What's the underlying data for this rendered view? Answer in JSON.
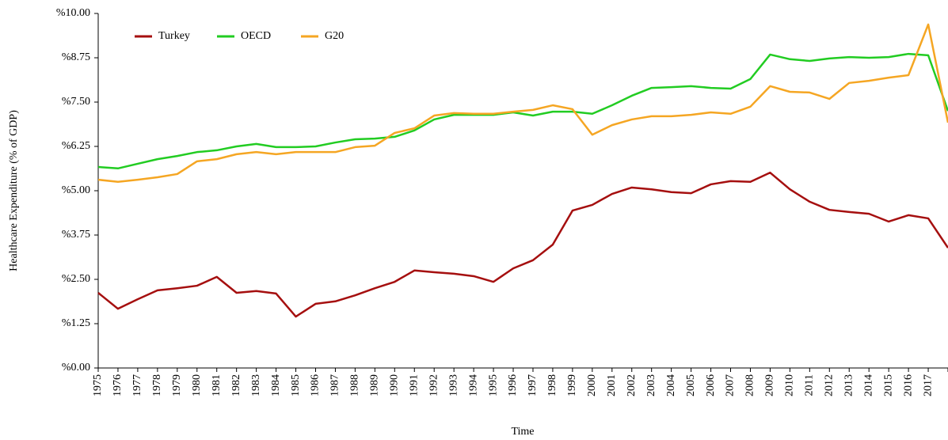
{
  "chart_data": {
    "type": "line",
    "x_label": "Time",
    "y_label": "Healthcare Expenditure  (% of GDP)",
    "categories": [
      "1975",
      "1976",
      "1977",
      "1978",
      "1979",
      "1980",
      "1981",
      "1982",
      "1983",
      "1984",
      "1985",
      "1986",
      "1987",
      "1988",
      "1989",
      "1990",
      "1991",
      "1992",
      "1993",
      "1994",
      "1995",
      "1996",
      "1997",
      "1998",
      "1999",
      "2000",
      "2001",
      "2002",
      "2003",
      "2004",
      "2005",
      "2006",
      "2007",
      "2008",
      "2009",
      "2010",
      "2011",
      "2012",
      "2013",
      "2014",
      "2015",
      "2016",
      "2017",
      null
    ],
    "series": [
      {
        "name": "Turkey",
        "color": "#a50f0f",
        "values": [
          2.12,
          1.67,
          1.94,
          2.19,
          2.25,
          2.32,
          2.57,
          2.12,
          2.17,
          2.1,
          1.45,
          1.81,
          1.88,
          2.05,
          2.25,
          2.43,
          2.75,
          2.7,
          2.66,
          2.59,
          2.43,
          2.81,
          3.04,
          3.48,
          4.44,
          4.6,
          4.91,
          5.09,
          5.04,
          4.96,
          4.93,
          5.18,
          5.27,
          5.25,
          5.51,
          5.04,
          4.69,
          4.46,
          4.4,
          4.35,
          4.13,
          4.31,
          4.22,
          3.39
        ]
      },
      {
        "name": "OECD",
        "color": "#22cc22",
        "values": [
          5.67,
          5.63,
          5.76,
          5.89,
          5.98,
          6.09,
          6.14,
          6.25,
          6.32,
          6.23,
          6.23,
          6.25,
          6.36,
          6.45,
          6.47,
          6.52,
          6.7,
          7.01,
          7.14,
          7.14,
          7.14,
          7.21,
          7.12,
          7.23,
          7.23,
          7.17,
          7.41,
          7.68,
          7.9,
          7.92,
          7.95,
          7.9,
          7.88,
          8.15,
          8.84,
          8.71,
          8.66,
          8.73,
          8.77,
          8.75,
          8.77,
          8.86,
          8.82,
          7.25
        ]
      },
      {
        "name": "G20",
        "color": "#f5a623",
        "values": [
          5.31,
          5.25,
          5.31,
          5.38,
          5.47,
          5.83,
          5.89,
          6.03,
          6.09,
          6.03,
          6.09,
          6.09,
          6.09,
          6.23,
          6.27,
          6.63,
          6.76,
          7.12,
          7.19,
          7.17,
          7.17,
          7.23,
          7.28,
          7.41,
          7.3,
          6.58,
          6.85,
          7.01,
          7.1,
          7.1,
          7.14,
          7.21,
          7.17,
          7.37,
          7.95,
          7.79,
          7.77,
          7.59,
          8.04,
          8.1,
          8.19,
          8.26,
          9.69,
          6.92
        ]
      }
    ],
    "ylim": [
      0,
      10
    ],
    "yticks": [
      {
        "value": 0,
        "label": "%0.00"
      },
      {
        "value": 1.25,
        "label": "%1.25"
      },
      {
        "value": 2.5,
        "label": "%2.50"
      },
      {
        "value": 3.75,
        "label": "%3.75"
      },
      {
        "value": 5,
        "label": "%5.00"
      },
      {
        "value": 6.25,
        "label": "%6.25"
      },
      {
        "value": 7.5,
        "label": "%7.50"
      },
      {
        "value": 8.75,
        "label": "%8.75"
      },
      {
        "value": 10,
        "label": "%10.00"
      }
    ],
    "legend": "top-left"
  }
}
